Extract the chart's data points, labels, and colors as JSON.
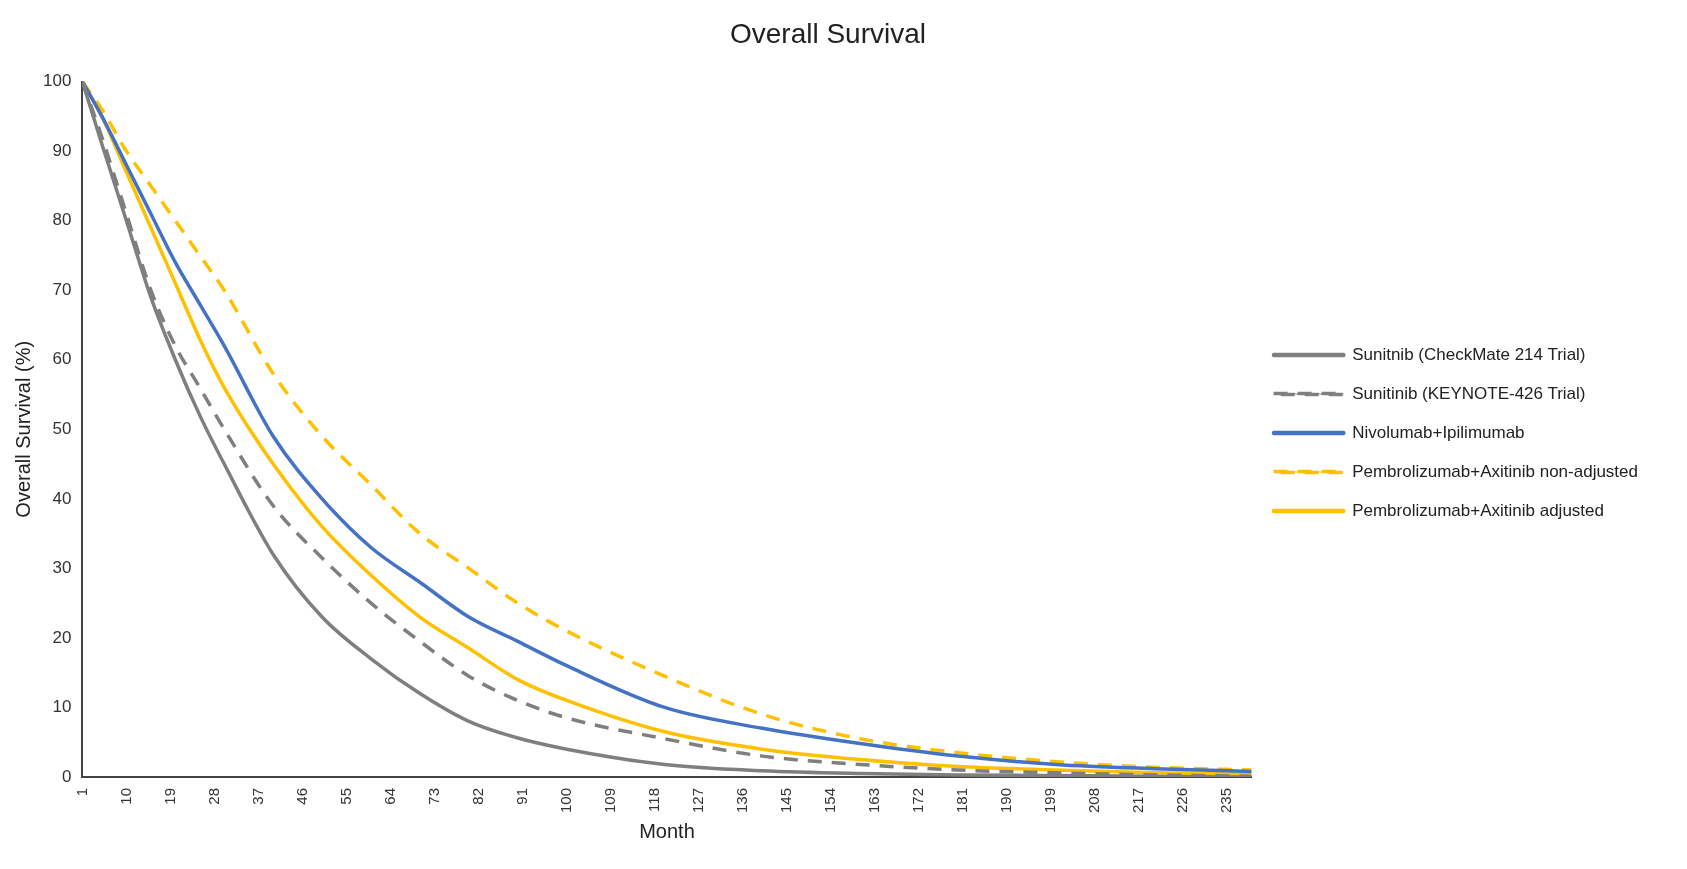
{
  "chart_data": {
    "type": "line",
    "title": "Overall Survival",
    "xlabel": "Month",
    "ylabel": "Overall Survival (%)",
    "x": [
      1,
      5,
      10,
      15,
      20,
      25,
      30,
      40,
      50,
      60,
      70,
      80,
      90,
      100,
      120,
      140,
      160,
      180,
      200,
      220,
      240
    ],
    "xlim": [
      1,
      240
    ],
    "xticks": [
      1,
      10,
      19,
      28,
      37,
      46,
      55,
      64,
      73,
      82,
      91,
      100,
      109,
      118,
      127,
      136,
      145,
      154,
      163,
      172,
      181,
      190,
      199,
      208,
      217,
      226,
      235
    ],
    "ylim": [
      0,
      100
    ],
    "yticks": [
      0,
      10,
      20,
      30,
      40,
      50,
      60,
      70,
      80,
      90,
      100
    ],
    "grid": false,
    "legend": "right",
    "series": [
      {
        "name": "Sunitnib (CheckMate 214 Trial)",
        "color": "#7f7f7f",
        "line_style": "solid",
        "values": [
          100,
          91,
          80,
          69,
          60,
          52,
          45,
          32,
          23,
          17,
          12,
          8,
          5.6,
          4,
          1.8,
          0.9,
          0.5,
          0.3,
          0.2,
          0.1,
          0
        ]
      },
      {
        "name": "Sunitinib (KEYNOTE-426 Trial)",
        "color": "#7f7f7f",
        "line_style": "dashed",
        "values": [
          100,
          92,
          81,
          70,
          62,
          56,
          50,
          39,
          31.5,
          25,
          19.5,
          14.5,
          11,
          8.5,
          5.5,
          3,
          1.8,
          1,
          0.6,
          0.3,
          0.1
        ]
      },
      {
        "name": "Nivolumab+Ipilimumab",
        "color": "#4472c4",
        "line_style": "solid",
        "values": [
          100,
          95,
          88,
          81,
          74,
          68,
          62,
          49,
          40,
          33,
          28,
          23,
          19.5,
          16,
          10,
          7,
          4.8,
          3,
          1.8,
          1.2,
          0.8
        ]
      },
      {
        "name": "Pembrolizumab+Axitinib non-adjusted",
        "color": "#ffc000",
        "line_style": "dashed",
        "values": [
          100,
          96,
          90,
          85,
          80,
          75,
          70,
          58,
          49,
          42,
          35,
          30,
          25,
          21,
          14.5,
          9,
          5.5,
          3.5,
          2.2,
          1.4,
          1
        ]
      },
      {
        "name": "Pembrolizumab+Axitinib adjusted",
        "color": "#ffc000",
        "line_style": "solid",
        "values": [
          100,
          95,
          87,
          79,
          71,
          63,
          56,
          45,
          36,
          29,
          23,
          18.5,
          14,
          11,
          6.5,
          4,
          2.5,
          1.5,
          1,
          0.6,
          0.4
        ]
      }
    ]
  }
}
